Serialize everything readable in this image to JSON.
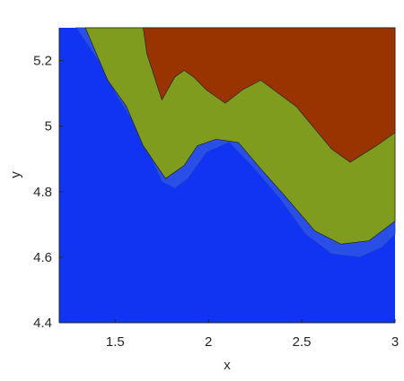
{
  "chart_data": {
    "type": "contour",
    "x_label": "x",
    "y_label": "y",
    "xlim": [
      1.2,
      3.0
    ],
    "ylim": [
      4.4,
      5.3
    ],
    "xticks": [
      1.5,
      2,
      2.5,
      3
    ],
    "yticks": [
      4.4,
      4.6,
      4.8,
      5,
      5.2
    ],
    "background_color": "#1133f2",
    "levels": [
      {
        "color": "#2a4fe6",
        "x": [
          1.29,
          1.41,
          1.51,
          1.63,
          1.75,
          1.82,
          1.89,
          1.99,
          2.11,
          2.23,
          2.38,
          2.52,
          2.66,
          2.81,
          2.93,
          3.0
        ],
        "y": [
          5.3,
          5.2,
          5.09,
          4.98,
          4.83,
          4.81,
          4.84,
          4.92,
          4.95,
          4.88,
          4.78,
          4.67,
          4.61,
          4.6,
          4.63,
          4.67
        ]
      },
      {
        "color": "#7f9c1e",
        "x": [
          1.34,
          1.46,
          1.56,
          1.65,
          1.77,
          1.87,
          1.94,
          2.04,
          2.16,
          2.28,
          2.42,
          2.57,
          2.71,
          2.86,
          3.0
        ],
        "y": [
          5.3,
          5.14,
          5.06,
          4.94,
          4.84,
          4.88,
          4.94,
          4.96,
          4.95,
          4.87,
          4.78,
          4.68,
          4.64,
          4.65,
          4.71
        ]
      },
      {
        "color": "#993300",
        "x": [
          1.65,
          1.67,
          1.75,
          1.82,
          1.87,
          1.92,
          1.99,
          2.09,
          2.18,
          2.28,
          2.47,
          2.66,
          2.76,
          2.9,
          3.0
        ],
        "y": [
          5.3,
          5.22,
          5.08,
          5.15,
          5.17,
          5.15,
          5.11,
          5.07,
          5.11,
          5.14,
          5.06,
          4.93,
          4.89,
          4.94,
          4.98
        ]
      }
    ]
  }
}
